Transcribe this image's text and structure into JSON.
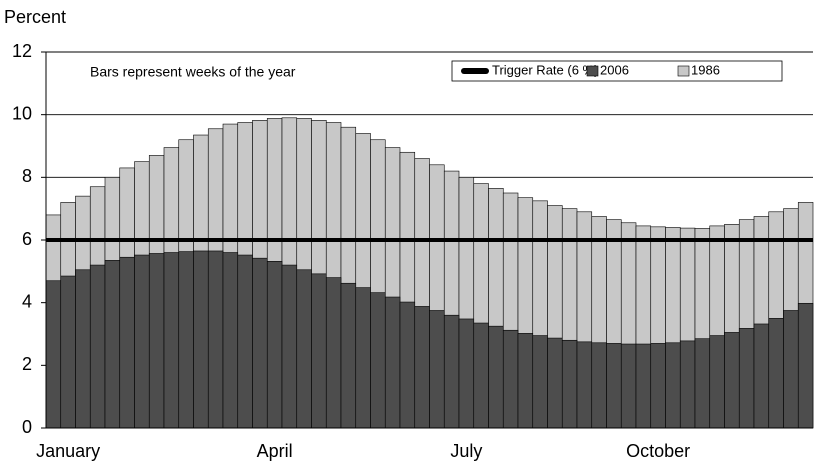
{
  "chart_data": {
    "type": "bar",
    "y_label": "Percent",
    "annotation": "Bars represent weeks of the year",
    "categories": [
      null,
      "January",
      null,
      null,
      null,
      null,
      null,
      null,
      null,
      null,
      null,
      null,
      null,
      null,
      null,
      "April",
      null,
      null,
      null,
      null,
      null,
      null,
      null,
      null,
      null,
      null,
      null,
      null,
      "July",
      null,
      null,
      null,
      null,
      null,
      null,
      null,
      null,
      null,
      null,
      null,
      null,
      "October",
      null,
      null,
      null,
      null,
      null,
      null,
      null,
      null,
      null,
      null
    ],
    "series": [
      {
        "name": "1986",
        "color": "#c8c8c8",
        "values": [
          6.8,
          7.2,
          7.4,
          7.7,
          8.0,
          8.3,
          8.5,
          8.7,
          8.95,
          9.2,
          9.35,
          9.55,
          9.7,
          9.75,
          9.82,
          9.88,
          9.9,
          9.88,
          9.82,
          9.75,
          9.6,
          9.4,
          9.2,
          8.95,
          8.8,
          8.6,
          8.4,
          8.2,
          8.0,
          7.8,
          7.65,
          7.5,
          7.35,
          7.25,
          7.1,
          7.0,
          6.9,
          6.75,
          6.65,
          6.55,
          6.45,
          6.42,
          6.4,
          6.38,
          6.37,
          6.45,
          6.5,
          6.65,
          6.75,
          6.9,
          7.0,
          7.2
        ]
      },
      {
        "name": "2006",
        "color": "#4d4d4d",
        "values": [
          4.7,
          4.85,
          5.05,
          5.2,
          5.35,
          5.45,
          5.52,
          5.57,
          5.6,
          5.63,
          5.65,
          5.65,
          5.6,
          5.52,
          5.42,
          5.32,
          5.2,
          5.05,
          4.92,
          4.8,
          4.62,
          4.48,
          4.32,
          4.18,
          4.02,
          3.88,
          3.75,
          3.6,
          3.48,
          3.35,
          3.25,
          3.12,
          3.02,
          2.95,
          2.87,
          2.8,
          2.75,
          2.72,
          2.7,
          2.68,
          2.68,
          2.7,
          2.72,
          2.78,
          2.85,
          2.95,
          3.05,
          3.18,
          3.32,
          3.5,
          3.75,
          3.98
        ]
      }
    ],
    "reference_line": {
      "name": "Trigger Rate (6 %)",
      "value": 6,
      "color": "#000000"
    },
    "ylim": [
      0,
      12
    ],
    "yticks": [
      0,
      2,
      4,
      6,
      8,
      10,
      12
    ],
    "grid": true,
    "legend": "top-right"
  }
}
